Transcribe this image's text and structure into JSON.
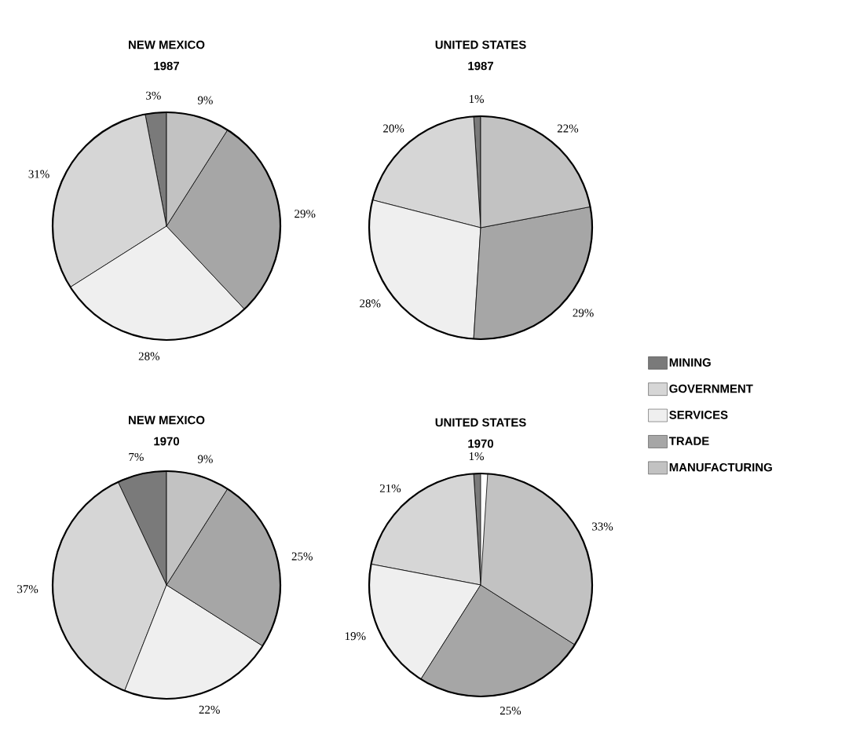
{
  "chart_data": [
    {
      "type": "pie",
      "title": "NEW MEXICO",
      "subtitle": "1987",
      "values": [
        3,
        31,
        28,
        29,
        9
      ],
      "value_labels": [
        "3%",
        "31%",
        "28%",
        "29%",
        "9%"
      ],
      "colors": [
        "#7a7a7a",
        "#d6d6d6",
        "#efefef",
        "#a6a6a6",
        "#c2c2c2"
      ]
    },
    {
      "type": "pie",
      "title": "UNITED STATES",
      "subtitle": "1987",
      "categories": [
        "MINING",
        "GOVERNMENT",
        "SERVICES",
        "TRADE",
        "MANUFACTURING"
      ],
      "values": [
        1,
        20,
        28,
        29,
        22
      ],
      "value_labels": [
        "1%",
        "20%",
        "28%",
        "29%",
        "22%"
      ],
      "colors": [
        "#7a7a7a",
        "#d6d6d6",
        "#efefef",
        "#a6a6a6",
        "#c2c2c2"
      ],
      "legend": "right"
    },
    {
      "type": "pie",
      "title": "NEW MEXICO",
      "subtitle": "1970",
      "values": [
        7,
        37,
        22,
        25,
        9
      ],
      "value_labels": [
        "7%",
        "37%",
        "22%",
        "25%",
        "9%"
      ],
      "colors": [
        "#7a7a7a",
        "#d6d6d6",
        "#efefef",
        "#a6a6a6",
        "#c2c2c2"
      ]
    },
    {
      "type": "pie",
      "title": "UNITED STATES",
      "subtitle": "1970",
      "values": [
        1,
        21,
        19,
        25,
        33
      ],
      "value_labels": [
        "1%",
        "21%",
        "19%",
        "25%",
        "33%"
      ],
      "colors": [
        "#7a7a7a",
        "#d6d6d6",
        "#efefef",
        "#a6a6a6",
        "#c2c2c2"
      ]
    }
  ]
}
